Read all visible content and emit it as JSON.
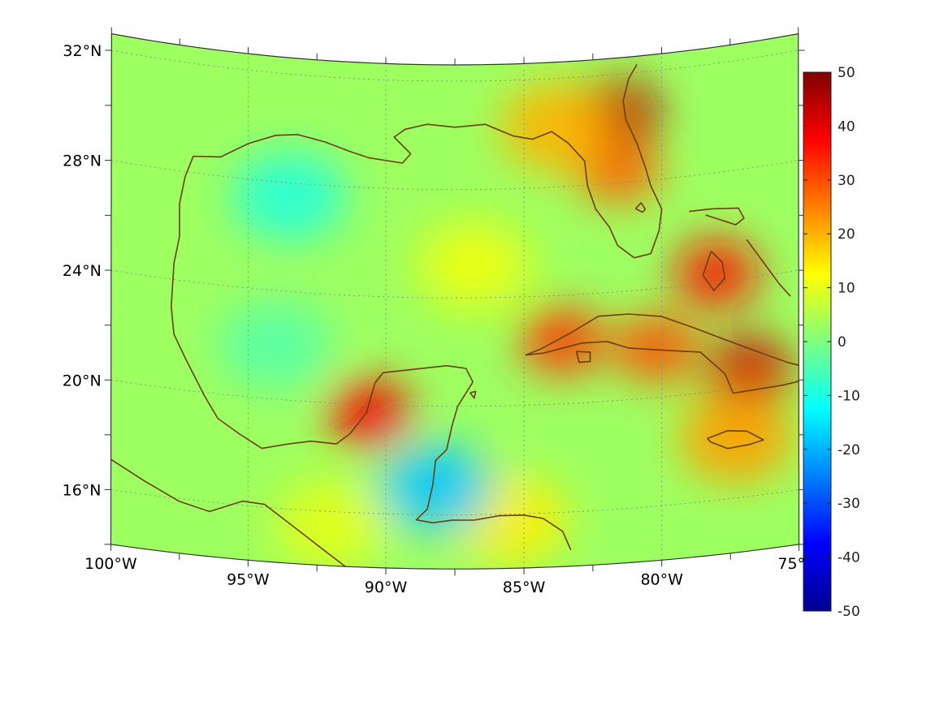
{
  "map": {
    "projection": "conic",
    "extent": {
      "lon": [
        -100,
        -75
      ],
      "lat": [
        14,
        32.6
      ]
    },
    "lat_labels": [
      {
        "lat": 32,
        "text": "32°N"
      },
      {
        "lat": 28,
        "text": "28°N"
      },
      {
        "lat": 24,
        "text": "24°N"
      },
      {
        "lat": 20,
        "text": "20°N"
      },
      {
        "lat": 16,
        "text": "16°N"
      }
    ],
    "lon_labels": [
      {
        "lon": -100,
        "text": "100°W"
      },
      {
        "lon": -95,
        "text": "95°W"
      },
      {
        "lon": -90,
        "text": "90°W"
      },
      {
        "lon": -85,
        "text": "85°W"
      },
      {
        "lon": -80,
        "text": "80°W"
      },
      {
        "lon": -75,
        "text": "75°W"
      }
    ],
    "grid": true,
    "coastline_color": "#6b3f12",
    "background_value": 3,
    "field_anomalies": [
      {
        "region": "Florida peninsula",
        "lon": -81.6,
        "lat": 28.5,
        "value": 28
      },
      {
        "region": "NE Florida coast",
        "lon": -81.6,
        "lat": 30.6,
        "value": 44
      },
      {
        "region": "Apalachee Bay",
        "lon": -83.8,
        "lat": 30.2,
        "value": 20
      },
      {
        "region": "Cuba west",
        "lon": -83.6,
        "lat": 22.3,
        "value": 32
      },
      {
        "region": "Cuba central",
        "lon": -80.2,
        "lat": 21.8,
        "value": 30
      },
      {
        "region": "Cuba east",
        "lon": -76.8,
        "lat": 20.6,
        "value": 42
      },
      {
        "region": "Bahamas (Andros)",
        "lon": -78.0,
        "lat": 24.3,
        "value": 36
      },
      {
        "region": "Yucatan west coast",
        "lon": -90.6,
        "lat": 19.7,
        "value": 38
      },
      {
        "region": "Jamaica",
        "lon": -77.3,
        "lat": 18.2,
        "value": 22
      },
      {
        "region": "Honduras coast",
        "lon": -85.5,
        "lat": 15.8,
        "value": 14
      },
      {
        "region": "Central Gulf",
        "lon": -86.8,
        "lat": 25.2,
        "value": 11
      },
      {
        "region": "Mexico/Central America land",
        "lon": -92.0,
        "lat": 15.5,
        "value": 10
      },
      {
        "region": "Western Gulf",
        "lon": -93.5,
        "lat": 27.5,
        "value": -9
      },
      {
        "region": "Bay of Campeche",
        "lon": -94.0,
        "lat": 22.0,
        "value": -4
      },
      {
        "region": "Belize coast",
        "lon": -88.2,
        "lat": 17.0,
        "value": -18
      }
    ]
  },
  "colorbar": {
    "min": -50,
    "max": 50,
    "colormap": "jet",
    "ticks": [
      {
        "value": 50,
        "text": "50"
      },
      {
        "value": 40,
        "text": "40"
      },
      {
        "value": 30,
        "text": "30"
      },
      {
        "value": 20,
        "text": "20"
      },
      {
        "value": 10,
        "text": "10"
      },
      {
        "value": 0,
        "text": "0"
      },
      {
        "value": -10,
        "text": "-10"
      },
      {
        "value": -20,
        "text": "-20"
      },
      {
        "value": -30,
        "text": "-30"
      },
      {
        "value": -40,
        "text": "-40"
      },
      {
        "value": -50,
        "text": "-50"
      }
    ]
  }
}
